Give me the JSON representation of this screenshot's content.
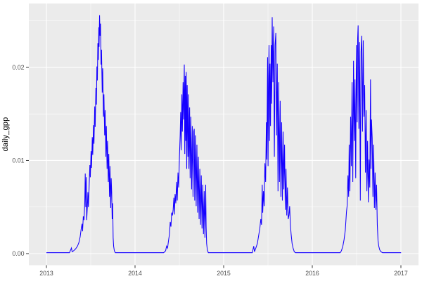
{
  "chart_data": {
    "type": "line",
    "title": "",
    "xlabel": "",
    "ylabel": "daily_gpp",
    "series_name": "daily_gpp",
    "legend": "none",
    "grid": "on",
    "line_color": "#1500ff",
    "theme": {
      "outer_bg": "#ffffff",
      "panel_bg": "#ebebeb",
      "grid_major_color": "#ffffff",
      "grid_minor_color": "#ffffff",
      "tick_mark_color": "#333333",
      "tick_label_color": "#4d4d4d",
      "axis_title_color": "#000000"
    },
    "x_axis": {
      "ticks": [
        {
          "label": "2013",
          "value": 2013
        },
        {
          "label": "2014",
          "value": 2014
        },
        {
          "label": "2015",
          "value": 2015
        },
        {
          "label": "2016",
          "value": 2016
        },
        {
          "label": "2017",
          "value": 2017
        }
      ],
      "minor_ticks": [
        2013.5,
        2014.5,
        2015.5,
        2016.5
      ],
      "range": [
        2012.8,
        2017.2
      ]
    },
    "y_axis": {
      "ticks": [
        {
          "label": "0.00",
          "value": 0.0
        },
        {
          "label": "0.01",
          "value": 0.01
        },
        {
          "label": "0.02",
          "value": 0.02
        }
      ],
      "minor_ticks": [
        0.005,
        0.015,
        0.025
      ],
      "range": [
        -0.00125,
        0.0269
      ]
    },
    "series": [
      {
        "year": 2013,
        "points": [
          [
            0,
            0.0001
          ],
          [
            60,
            0.0001
          ],
          [
            95,
            0.0001
          ],
          [
            100,
            0.0004
          ],
          [
            103,
            0.0006
          ],
          [
            106,
            0.0002
          ],
          [
            112,
            0.0003
          ],
          [
            120,
            0.0005
          ],
          [
            128,
            0.0008
          ],
          [
            134,
            0.0012
          ],
          [
            139,
            0.0018
          ],
          [
            143,
            0.0026
          ],
          [
            147,
            0.0032
          ],
          [
            149,
            0.0024
          ],
          [
            152,
            0.004
          ],
          [
            155,
            0.0036
          ],
          [
            158,
            0.0055
          ],
          [
            160,
            0.0086
          ],
          [
            162,
            0.005
          ],
          [
            164,
            0.0082
          ],
          [
            166,
            0.0036
          ],
          [
            169,
            0.0052
          ],
          [
            171,
            0.0066
          ],
          [
            173,
            0.005
          ],
          [
            176,
            0.0072
          ],
          [
            179,
            0.0095
          ],
          [
            181,
            0.0082
          ],
          [
            184,
            0.011
          ],
          [
            186,
            0.0092
          ],
          [
            189,
            0.0125
          ],
          [
            191,
            0.0106
          ],
          [
            194,
            0.0138
          ],
          [
            196,
            0.0118
          ],
          [
            199,
            0.0158
          ],
          [
            201,
            0.0136
          ],
          [
            204,
            0.0178
          ],
          [
            206,
            0.016
          ],
          [
            208,
            0.0201
          ],
          [
            210,
            0.0186
          ],
          [
            212,
            0.0226
          ],
          [
            214,
            0.0208
          ],
          [
            216,
            0.0243
          ],
          [
            217,
            0.0222
          ],
          [
            219,
            0.0256
          ],
          [
            221,
            0.0234
          ],
          [
            223,
            0.0247
          ],
          [
            225,
            0.0203
          ],
          [
            227,
            0.0219
          ],
          [
            230,
            0.0173
          ],
          [
            232,
            0.0199
          ],
          [
            235,
            0.0147
          ],
          [
            237,
            0.0171
          ],
          [
            240,
            0.0127
          ],
          [
            242,
            0.0154
          ],
          [
            245,
            0.0104
          ],
          [
            247,
            0.0137
          ],
          [
            250,
            0.0091
          ],
          [
            252,
            0.0121
          ],
          [
            255,
            0.0077
          ],
          [
            257,
            0.0107
          ],
          [
            260,
            0.0061
          ],
          [
            262,
            0.0094
          ],
          [
            265,
            0.0049
          ],
          [
            267,
            0.0081
          ],
          [
            269,
            0.0066
          ],
          [
            271,
            0.0037
          ],
          [
            273,
            0.0054
          ],
          [
            275,
            0.0017
          ],
          [
            277,
            0.0008
          ],
          [
            280,
            0.0003
          ],
          [
            284,
            0.0001
          ],
          [
            364,
            0.0001
          ]
        ]
      },
      {
        "year": 2014,
        "points": [
          [
            118,
            0.0001
          ],
          [
            126,
            0.0003
          ],
          [
            130,
            0.0008
          ],
          [
            134,
            0.0006
          ],
          [
            138,
            0.0014
          ],
          [
            142,
            0.0021
          ],
          [
            145,
            0.0034
          ],
          [
            148,
            0.0029
          ],
          [
            151,
            0.0044
          ],
          [
            154,
            0.0041
          ],
          [
            157,
            0.0047
          ],
          [
            160,
            0.006
          ],
          [
            162,
            0.0042
          ],
          [
            165,
            0.0064
          ],
          [
            168,
            0.0054
          ],
          [
            171,
            0.0077
          ],
          [
            174,
            0.0057
          ],
          [
            177,
            0.0087
          ],
          [
            180,
            0.0071
          ],
          [
            183,
            0.0104
          ],
          [
            186,
            0.0128
          ],
          [
            188,
            0.0152
          ],
          [
            190,
            0.0111
          ],
          [
            193,
            0.0171
          ],
          [
            195,
            0.0131
          ],
          [
            198,
            0.0184
          ],
          [
            200,
            0.0144
          ],
          [
            203,
            0.0203
          ],
          [
            205,
            0.0107
          ],
          [
            207,
            0.0191
          ],
          [
            209,
            0.0121
          ],
          [
            211,
            0.0195
          ],
          [
            213,
            0.0091
          ],
          [
            215,
            0.0181
          ],
          [
            218,
            0.0104
          ],
          [
            220,
            0.0171
          ],
          [
            222,
            0.0091
          ],
          [
            225,
            0.0157
          ],
          [
            227,
            0.0081
          ],
          [
            230,
            0.0147
          ],
          [
            233,
            0.0069
          ],
          [
            236,
            0.0137
          ],
          [
            239,
            0.0061
          ],
          [
            242,
            0.0131
          ],
          [
            244,
            0.0134
          ],
          [
            246,
            0.0057
          ],
          [
            249,
            0.0127
          ],
          [
            252,
            0.0051
          ],
          [
            255,
            0.0117
          ],
          [
            258,
            0.0044
          ],
          [
            261,
            0.0104
          ],
          [
            264,
            0.0037
          ],
          [
            267,
            0.0091
          ],
          [
            270,
            0.0031
          ],
          [
            273,
            0.0084
          ],
          [
            276,
            0.0027
          ],
          [
            279,
            0.0074
          ],
          [
            282,
            0.0021
          ],
          [
            285,
            0.0067
          ],
          [
            288,
            0.0017
          ],
          [
            291,
            0.0074
          ],
          [
            293,
            0.0029
          ],
          [
            295,
            0.0011
          ],
          [
            298,
            0.0004
          ],
          [
            302,
            0.0001
          ],
          [
            364,
            0.0001
          ]
        ]
      },
      {
        "year": 2015,
        "points": [
          [
            118,
            0.0001
          ],
          [
            124,
            0.0008
          ],
          [
            127,
            0.0002
          ],
          [
            134,
            0.0007
          ],
          [
            139,
            0.0011
          ],
          [
            144,
            0.0019
          ],
          [
            149,
            0.0027
          ],
          [
            153,
            0.0037
          ],
          [
            156,
            0.0031
          ],
          [
            159,
            0.0074
          ],
          [
            161,
            0.0044
          ],
          [
            164,
            0.0067
          ],
          [
            167,
            0.0051
          ],
          [
            170,
            0.0097
          ],
          [
            173,
            0.0077
          ],
          [
            176,
            0.0141
          ],
          [
            178,
            0.0101
          ],
          [
            181,
            0.0211
          ],
          [
            183,
            0.0094
          ],
          [
            185,
            0.0187
          ],
          [
            187,
            0.0224
          ],
          [
            189,
            0.0121
          ],
          [
            191,
            0.0204
          ],
          [
            193,
            0.0137
          ],
          [
            196,
            0.0224
          ],
          [
            198,
            0.0161
          ],
          [
            200,
            0.0254
          ],
          [
            203,
            0.0184
          ],
          [
            206,
            0.0244
          ],
          [
            209,
            0.0104
          ],
          [
            212,
            0.0224
          ],
          [
            215,
            0.0237
          ],
          [
            218,
            0.0127
          ],
          [
            221,
            0.0204
          ],
          [
            224,
            0.0067
          ],
          [
            227,
            0.0184
          ],
          [
            230,
            0.0077
          ],
          [
            233,
            0.0164
          ],
          [
            236,
            0.0061
          ],
          [
            239,
            0.0141
          ],
          [
            242,
            0.0057
          ],
          [
            245,
            0.0131
          ],
          [
            248,
            0.0069
          ],
          [
            251,
            0.0117
          ],
          [
            254,
            0.0047
          ],
          [
            257,
            0.0091
          ],
          [
            260,
            0.0041
          ],
          [
            263,
            0.0071
          ],
          [
            266,
            0.0037
          ],
          [
            269,
            0.0041
          ],
          [
            272,
            0.0051
          ],
          [
            275,
            0.0031
          ],
          [
            278,
            0.0021
          ],
          [
            282,
            0.0011
          ],
          [
            286,
            0.0006
          ],
          [
            291,
            0.0002
          ],
          [
            296,
            0.0001
          ],
          [
            364,
            0.0001
          ]
        ]
      },
      {
        "year": 2016,
        "points": [
          [
            100,
            0.0001
          ],
          [
            115,
            0.0001
          ],
          [
            120,
            0.0003
          ],
          [
            126,
            0.0008
          ],
          [
            131,
            0.0015
          ],
          [
            136,
            0.0025
          ],
          [
            141,
            0.0045
          ],
          [
            144,
            0.0052
          ],
          [
            147,
            0.0084
          ],
          [
            150,
            0.0061
          ],
          [
            152,
            0.0117
          ],
          [
            155,
            0.0067
          ],
          [
            158,
            0.0147
          ],
          [
            161,
            0.0094
          ],
          [
            164,
            0.0184
          ],
          [
            167,
            0.0077
          ],
          [
            170,
            0.0207
          ],
          [
            173,
            0.0121
          ],
          [
            176,
            0.0187
          ],
          [
            179,
            0.0081
          ],
          [
            182,
            0.0224
          ],
          [
            185,
            0.0141
          ],
          [
            187,
            0.0231
          ],
          [
            189,
            0.0245
          ],
          [
            192,
            0.0134
          ],
          [
            195,
            0.0227
          ],
          [
            198,
            0.0057
          ],
          [
            201,
            0.0217
          ],
          [
            204,
            0.0234
          ],
          [
            207,
            0.0131
          ],
          [
            210,
            0.0229
          ],
          [
            213,
            0.0147
          ],
          [
            216,
            0.0181
          ],
          [
            219,
            0.0087
          ],
          [
            222,
            0.0154
          ],
          [
            225,
            0.0067
          ],
          [
            228,
            0.0121
          ],
          [
            231,
            0.0055
          ],
          [
            234,
            0.0101
          ],
          [
            237,
            0.0071
          ],
          [
            240,
            0.0187
          ],
          [
            242,
            0.0091
          ],
          [
            244,
            0.0144
          ],
          [
            247,
            0.0124
          ],
          [
            250,
            0.0061
          ],
          [
            253,
            0.0117
          ],
          [
            256,
            0.0049
          ],
          [
            259,
            0.0087
          ],
          [
            262,
            0.0047
          ],
          [
            265,
            0.0074
          ],
          [
            268,
            0.0031
          ],
          [
            271,
            0.0014
          ],
          [
            274,
            0.0008
          ],
          [
            278,
            0.0004
          ],
          [
            283,
            0.0002
          ],
          [
            290,
            0.0001
          ],
          [
            366,
            0.0001
          ]
        ]
      }
    ]
  }
}
